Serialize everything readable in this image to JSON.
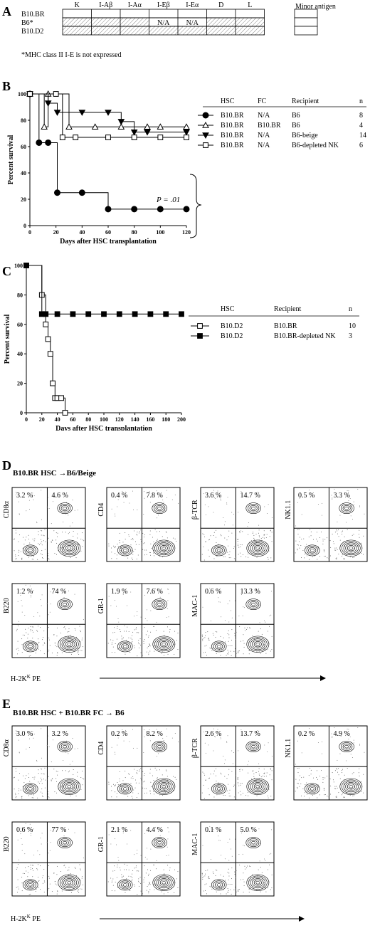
{
  "panels": {
    "A": {
      "label": "A",
      "columns": [
        "K",
        "I-Aβ",
        "I-Aα",
        "I-Eβ",
        "I-Eα",
        "D",
        "L"
      ],
      "minor_header": "Minor antigen",
      "rows": [
        {
          "name": "B10.BR",
          "pattern": "white",
          "cells": [
            "",
            "",
            "",
            "",
            "",
            "",
            ""
          ]
        },
        {
          "name": "B6*",
          "pattern": "hatch",
          "cells": [
            "",
            "",
            "",
            "N/A",
            "N/A",
            "",
            ""
          ]
        },
        {
          "name": "B10.D2",
          "pattern": "hatch",
          "cells": [
            "",
            "",
            "",
            "",
            "",
            "",
            ""
          ]
        }
      ],
      "footnote": "*MHC class II I-E is not expressed"
    },
    "B": {
      "label": "B",
      "legend_headers": [
        "HSC",
        "FC",
        "Recipient",
        "n"
      ],
      "legend_rows": [
        {
          "hsc": "B10.BR",
          "fc": "N/A",
          "recipient": "B6",
          "n": "8"
        },
        {
          "hsc": "B10.BR",
          "fc": "B10.BR",
          "recipient": "B6",
          "n": "4"
        },
        {
          "hsc": "B10.BR",
          "fc": "N/A",
          "recipient": "B6-beige",
          "n": "14"
        },
        {
          "hsc": "B10.BR",
          "fc": "N/A",
          "recipient": "B6-depleted NK",
          "n": "6"
        }
      ],
      "pvalue": "P = .01"
    },
    "C": {
      "label": "C",
      "legend_headers": [
        "HSC",
        "Recipient",
        "n"
      ],
      "legend_rows": [
        {
          "hsc": "B10.D2",
          "recipient": "B10.BR",
          "n": "10"
        },
        {
          "hsc": "B10.D2",
          "recipient": "B10.BR-depleted NK",
          "n": "3"
        }
      ]
    },
    "D": {
      "label": "D",
      "title": "B10.BR HSC →B6/Beige",
      "plots": [
        {
          "marker": "CD8α",
          "left": "3.2 %",
          "right": "4.6 %"
        },
        {
          "marker": "CD4",
          "left": "0.4 %",
          "right": "7.8 %"
        },
        {
          "marker": "β-TCR",
          "left": "3.6 %",
          "right": "14.7 %"
        },
        {
          "marker": "NK1.1",
          "left": "0.5 %",
          "right": "3.3 %"
        },
        {
          "marker": "B220",
          "left": "1.2 %",
          "right": "74 %"
        },
        {
          "marker": "GR-1",
          "left": "1.9 %",
          "right": "7.6 %"
        },
        {
          "marker": "MAC-1",
          "left": "0.6 %",
          "right": "13.3 %"
        }
      ],
      "xaxis": "H-2Kk PE"
    },
    "E": {
      "label": "E",
      "title": "B10.BR HSC + B10.BR FC → B6",
      "plots": [
        {
          "marker": "CD8α",
          "left": "3.0 %",
          "right": "3.2 %"
        },
        {
          "marker": "CD4",
          "left": "0.2 %",
          "right": "8.2 %"
        },
        {
          "marker": "β-TCR",
          "left": "2.6 %",
          "right": "13.7 %"
        },
        {
          "marker": "NK1.1",
          "left": "0.2 %",
          "right": "4.9 %"
        },
        {
          "marker": "B220",
          "left": "0.6 %",
          "right": "77 %"
        },
        {
          "marker": "GR-1",
          "left": "2.1 %",
          "right": "4.4 %"
        },
        {
          "marker": "MAC-1",
          "left": "0.1 %",
          "right": "5.0 %"
        }
      ],
      "xaxis": "H-2Kk PE"
    }
  },
  "chart_data": [
    {
      "type": "line",
      "panel": "B",
      "step": true,
      "xlabel": "Days after HSC transplantation",
      "ylabel": "Percent survival",
      "xlim": [
        0,
        120
      ],
      "ylim": [
        0,
        100
      ],
      "xticks": [
        0,
        20,
        40,
        60,
        80,
        100,
        120
      ],
      "yticks": [
        0,
        20,
        40,
        60,
        80,
        100
      ],
      "series": [
        {
          "marker": "filled-circle",
          "x": [
            0,
            7,
            14,
            21,
            40,
            60,
            80,
            100,
            120
          ],
          "y": [
            100,
            63,
            63,
            25,
            25,
            12.5,
            12.5,
            12.5,
            12.5
          ]
        },
        {
          "marker": "open-triangle",
          "x": [
            0,
            11,
            14,
            30,
            50,
            70,
            90,
            100,
            120
          ],
          "y": [
            100,
            75,
            100,
            75,
            75,
            75,
            75,
            75,
            75
          ]
        },
        {
          "marker": "filled-down-triangle",
          "x": [
            0,
            14,
            21,
            40,
            60,
            70,
            80,
            90,
            120
          ],
          "y": [
            100,
            93,
            86,
            86,
            86,
            79,
            71,
            71,
            71
          ]
        },
        {
          "marker": "open-square",
          "x": [
            0,
            20,
            25,
            35,
            60,
            80,
            100,
            120
          ],
          "y": [
            100,
            100,
            67,
            67,
            67,
            67,
            67,
            67
          ]
        }
      ]
    },
    {
      "type": "line",
      "panel": "C",
      "step": true,
      "xlabel": "Days after HSC transplantation",
      "ylabel": "Percent survival",
      "xlim": [
        0,
        200
      ],
      "ylim": [
        0,
        100
      ],
      "xticks": [
        0,
        20,
        40,
        60,
        80,
        100,
        120,
        140,
        160,
        180,
        200
      ],
      "yticks": [
        0,
        20,
        40,
        60,
        80,
        100
      ],
      "series": [
        {
          "marker": "open-square",
          "x": [
            0,
            20,
            25,
            28,
            31,
            34,
            37,
            40,
            45,
            50
          ],
          "y": [
            100,
            80,
            60,
            50,
            40,
            20,
            10,
            10,
            10,
            0
          ]
        },
        {
          "marker": "filled-square",
          "x": [
            0,
            20,
            25,
            40,
            60,
            80,
            100,
            120,
            140,
            160,
            180,
            200
          ],
          "y": [
            100,
            67,
            67,
            67,
            67,
            67,
            67,
            67,
            67,
            67,
            67,
            67
          ]
        }
      ]
    }
  ]
}
